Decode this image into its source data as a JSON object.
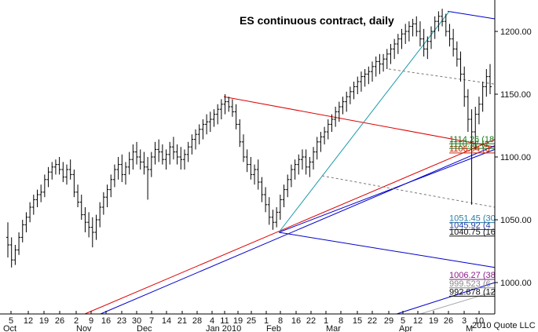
{
  "chart_data": {
    "type": "ohlc",
    "title": "ES continuous contract, daily",
    "ylim": [
      975,
      1225
    ],
    "y_ticks": [
      {
        "value": 1200,
        "label": "1200.00"
      },
      {
        "value": 1150,
        "label": "1150.00"
      },
      {
        "value": 1100,
        "label": "1100.00"
      },
      {
        "value": 1050,
        "label": "1050.00"
      },
      {
        "value": 1000,
        "label": "1000.00"
      }
    ],
    "x_day_labels": [
      "5",
      "12",
      "19",
      "26",
      "2",
      "9",
      "16",
      "23",
      "30",
      "7",
      "14",
      "21",
      "28",
      "4",
      "11",
      "19",
      "25",
      "1",
      "8",
      "16",
      "22",
      "1",
      "8",
      "15",
      "22",
      "29",
      "5",
      "12",
      "19",
      "26",
      "3",
      "10"
    ],
    "x_month_labels": [
      "Oct",
      "Nov",
      "Dec",
      "Jan 2010",
      "Feb",
      "Mar",
      "Apr",
      "M"
    ],
    "credit": "2010 Quote LLC",
    "grid": false,
    "annotations": [
      {
        "label": "1114.26 (18",
        "value": 1114.26,
        "color": "#1a7a1a"
      },
      {
        "label": "1110.57 (2",
        "value": 1110.57,
        "color": "#1a7a1a"
      },
      {
        "label": "1106.94 (3",
        "value": 1106.94,
        "color": "#cc2200"
      },
      {
        "label": "1051.45 (30",
        "value": 1051.45,
        "color": "#2a7fa8"
      },
      {
        "label": "1045.92 (4",
        "value": 1045.92,
        "color": "#2244aa"
      },
      {
        "label": "1040.75 (16",
        "value": 1040.75,
        "color": "#111111"
      },
      {
        "label": "1006.27 (38",
        "value": 1006.27,
        "color": "#8a1a8a"
      },
      {
        "label": "999.523 (6",
        "value": 999.523,
        "color": "#888888"
      },
      {
        "label": "992.878 (12",
        "value": 992.878,
        "color": "#111111"
      }
    ],
    "colors": {
      "bars": "#000000",
      "red_line": "#dd0000",
      "blue_line": "#0000cc",
      "teal_line": "#1a9aaa",
      "dashed_line": "#777777"
    },
    "series": [
      {
        "ohlc": [
          [
            1036,
            1048,
            1020,
            1030
          ],
          [
            1030,
            1036,
            1012,
            1018
          ],
          [
            1018,
            1030,
            1014,
            1026
          ],
          [
            1026,
            1040,
            1022,
            1036
          ],
          [
            1036,
            1050,
            1032,
            1046
          ],
          [
            1046,
            1056,
            1040,
            1052
          ],
          [
            1052,
            1064,
            1048,
            1060
          ],
          [
            1060,
            1070,
            1054,
            1066
          ],
          [
            1066,
            1074,
            1060,
            1070
          ],
          [
            1070,
            1078,
            1064,
            1072
          ],
          [
            1072,
            1086,
            1068,
            1082
          ],
          [
            1082,
            1092,
            1076,
            1088
          ],
          [
            1088,
            1096,
            1082,
            1092
          ],
          [
            1092,
            1098,
            1086,
            1094
          ],
          [
            1094,
            1100,
            1086,
            1090
          ],
          [
            1090,
            1096,
            1080,
            1084
          ],
          [
            1084,
            1094,
            1078,
            1090
          ],
          [
            1090,
            1098,
            1082,
            1086
          ],
          [
            1086,
            1090,
            1068,
            1072
          ],
          [
            1072,
            1078,
            1060,
            1064
          ],
          [
            1064,
            1070,
            1050,
            1054
          ],
          [
            1054,
            1060,
            1040,
            1048
          ],
          [
            1048,
            1056,
            1036,
            1044
          ],
          [
            1044,
            1052,
            1028,
            1040
          ],
          [
            1040,
            1054,
            1034,
            1050
          ],
          [
            1050,
            1064,
            1044,
            1060
          ],
          [
            1060,
            1072,
            1054,
            1068
          ],
          [
            1068,
            1078,
            1060,
            1074
          ],
          [
            1074,
            1086,
            1068,
            1082
          ],
          [
            1082,
            1094,
            1076,
            1090
          ],
          [
            1090,
            1100,
            1082,
            1094
          ],
          [
            1094,
            1102,
            1080,
            1086
          ],
          [
            1086,
            1096,
            1078,
            1092
          ],
          [
            1092,
            1104,
            1086,
            1098
          ],
          [
            1098,
            1110,
            1090,
            1104
          ],
          [
            1104,
            1112,
            1094,
            1100
          ],
          [
            1100,
            1106,
            1090,
            1096
          ],
          [
            1096,
            1104,
            1086,
            1092
          ],
          [
            1092,
            1100,
            1066,
            1090
          ],
          [
            1090,
            1104,
            1084,
            1100
          ],
          [
            1100,
            1112,
            1094,
            1106
          ],
          [
            1106,
            1114,
            1096,
            1104
          ],
          [
            1104,
            1110,
            1094,
            1098
          ],
          [
            1098,
            1106,
            1090,
            1102
          ],
          [
            1102,
            1112,
            1094,
            1108
          ],
          [
            1108,
            1116,
            1098,
            1104
          ],
          [
            1104,
            1110,
            1094,
            1100
          ],
          [
            1100,
            1108,
            1090,
            1098
          ],
          [
            1098,
            1106,
            1090,
            1102
          ],
          [
            1102,
            1112,
            1096,
            1108
          ],
          [
            1108,
            1118,
            1102,
            1114
          ],
          [
            1114,
            1122,
            1106,
            1118
          ],
          [
            1118,
            1126,
            1110,
            1122
          ],
          [
            1122,
            1130,
            1114,
            1126
          ],
          [
            1126,
            1134,
            1118,
            1128
          ],
          [
            1128,
            1136,
            1120,
            1130
          ],
          [
            1130,
            1138,
            1124,
            1134
          ],
          [
            1134,
            1142,
            1126,
            1138
          ],
          [
            1138,
            1146,
            1130,
            1142
          ],
          [
            1142,
            1150,
            1134,
            1144
          ],
          [
            1144,
            1148,
            1136,
            1140
          ],
          [
            1140,
            1146,
            1132,
            1136
          ],
          [
            1136,
            1142,
            1122,
            1126
          ],
          [
            1126,
            1130,
            1108,
            1112
          ],
          [
            1112,
            1118,
            1096,
            1100
          ],
          [
            1100,
            1106,
            1088,
            1094
          ],
          [
            1094,
            1100,
            1082,
            1086
          ],
          [
            1086,
            1094,
            1078,
            1090
          ],
          [
            1090,
            1098,
            1074,
            1080
          ],
          [
            1080,
            1084,
            1064,
            1070
          ],
          [
            1070,
            1076,
            1056,
            1062
          ],
          [
            1062,
            1068,
            1046,
            1052
          ],
          [
            1052,
            1058,
            1042,
            1048
          ],
          [
            1048,
            1060,
            1044,
            1056
          ],
          [
            1056,
            1070,
            1050,
            1066
          ],
          [
            1066,
            1078,
            1060,
            1074
          ],
          [
            1074,
            1086,
            1068,
            1082
          ],
          [
            1082,
            1094,
            1076,
            1090
          ],
          [
            1090,
            1098,
            1082,
            1094
          ],
          [
            1094,
            1102,
            1086,
            1098
          ],
          [
            1098,
            1106,
            1090,
            1100
          ],
          [
            1100,
            1106,
            1086,
            1092
          ],
          [
            1092,
            1100,
            1084,
            1096
          ],
          [
            1096,
            1108,
            1090,
            1104
          ],
          [
            1104,
            1116,
            1098,
            1112
          ],
          [
            1112,
            1120,
            1104,
            1116
          ],
          [
            1116,
            1124,
            1110,
            1120
          ],
          [
            1120,
            1130,
            1114,
            1126
          ],
          [
            1126,
            1134,
            1120,
            1130
          ],
          [
            1130,
            1140,
            1124,
            1136
          ],
          [
            1136,
            1144,
            1128,
            1140
          ],
          [
            1140,
            1148,
            1134,
            1144
          ],
          [
            1144,
            1152,
            1136,
            1148
          ],
          [
            1148,
            1156,
            1142,
            1152
          ],
          [
            1152,
            1160,
            1146,
            1156
          ],
          [
            1156,
            1164,
            1150,
            1160
          ],
          [
            1160,
            1168,
            1152,
            1164
          ],
          [
            1164,
            1170,
            1156,
            1166
          ],
          [
            1166,
            1172,
            1158,
            1168
          ],
          [
            1168,
            1176,
            1160,
            1172
          ],
          [
            1172,
            1180,
            1164,
            1176
          ],
          [
            1176,
            1182,
            1166,
            1174
          ],
          [
            1174,
            1182,
            1168,
            1178
          ],
          [
            1178,
            1186,
            1170,
            1182
          ],
          [
            1182,
            1190,
            1174,
            1186
          ],
          [
            1186,
            1194,
            1178,
            1190
          ],
          [
            1190,
            1198,
            1182,
            1194
          ],
          [
            1194,
            1202,
            1186,
            1198
          ],
          [
            1198,
            1206,
            1190,
            1200
          ],
          [
            1200,
            1208,
            1192,
            1204
          ],
          [
            1204,
            1210,
            1196,
            1206
          ],
          [
            1206,
            1212,
            1196,
            1200
          ],
          [
            1200,
            1208,
            1188,
            1194
          ],
          [
            1194,
            1202,
            1180,
            1186
          ],
          [
            1186,
            1196,
            1178,
            1192
          ],
          [
            1192,
            1204,
            1186,
            1200
          ],
          [
            1200,
            1212,
            1194,
            1208
          ],
          [
            1208,
            1216,
            1200,
            1212
          ],
          [
            1212,
            1218,
            1204,
            1208
          ],
          [
            1208,
            1214,
            1196,
            1200
          ],
          [
            1200,
            1206,
            1188,
            1194
          ],
          [
            1194,
            1202,
            1180,
            1186
          ],
          [
            1186,
            1192,
            1172,
            1178
          ],
          [
            1178,
            1184,
            1160,
            1166
          ],
          [
            1166,
            1172,
            1140,
            1148
          ],
          [
            1148,
            1154,
            1120,
            1130
          ],
          [
            1130,
            1138,
            1062,
            1120
          ],
          [
            1120,
            1140,
            1106,
            1134
          ],
          [
            1134,
            1148,
            1126,
            1142
          ],
          [
            1142,
            1160,
            1136,
            1156
          ],
          [
            1156,
            1170,
            1148,
            1164
          ],
          [
            1164,
            1174,
            1150,
            1156
          ]
        ]
      }
    ]
  }
}
